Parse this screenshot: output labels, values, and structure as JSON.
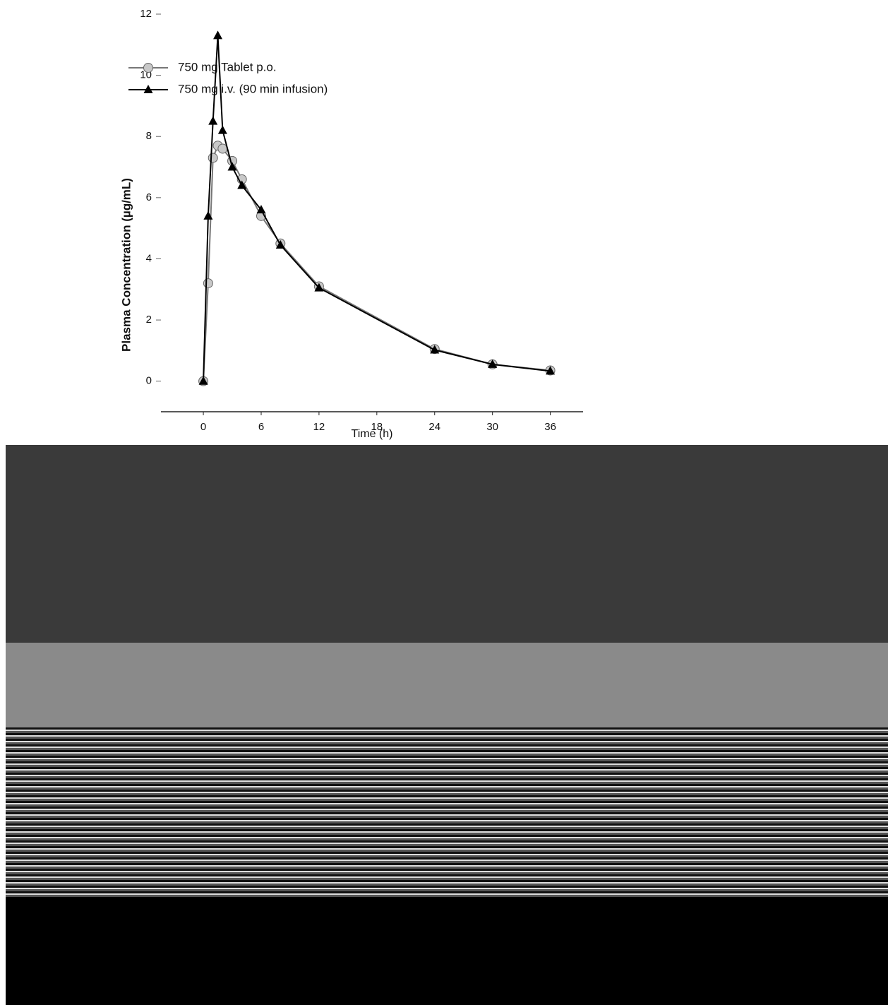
{
  "chart_data": {
    "type": "line",
    "y_label": "Plasma Concentration (µg/mL)",
    "x_label": "Time (h)",
    "x": [
      0,
      0.5,
      1,
      1.5,
      2,
      3,
      4,
      6,
      8,
      12,
      24,
      30,
      36
    ],
    "series": [
      {
        "name": "750 mg Tablet p.o.",
        "color": "#c8c8c8",
        "marker": "circle",
        "values": [
          0,
          3.2,
          7.3,
          7.7,
          7.6,
          7.2,
          6.6,
          5.4,
          4.5,
          3.1,
          1.05,
          0.55,
          0.35
        ]
      },
      {
        "name": "750 mg i.v. (90 min infusion)",
        "color": "#000000",
        "marker": "triangle",
        "values": [
          0,
          5.4,
          8.5,
          11.3,
          8.2,
          7.0,
          6.4,
          5.6,
          4.45,
          3.05,
          1.02,
          0.55,
          0.33
        ]
      }
    ],
    "xlim": [
      -4.4,
      39.4
    ],
    "xticks": [
      0,
      6,
      12,
      18,
      24,
      30,
      36
    ],
    "ylim": [
      -1,
      12
    ],
    "yticks": [
      0,
      2,
      4,
      6,
      8,
      10,
      12
    ]
  }
}
